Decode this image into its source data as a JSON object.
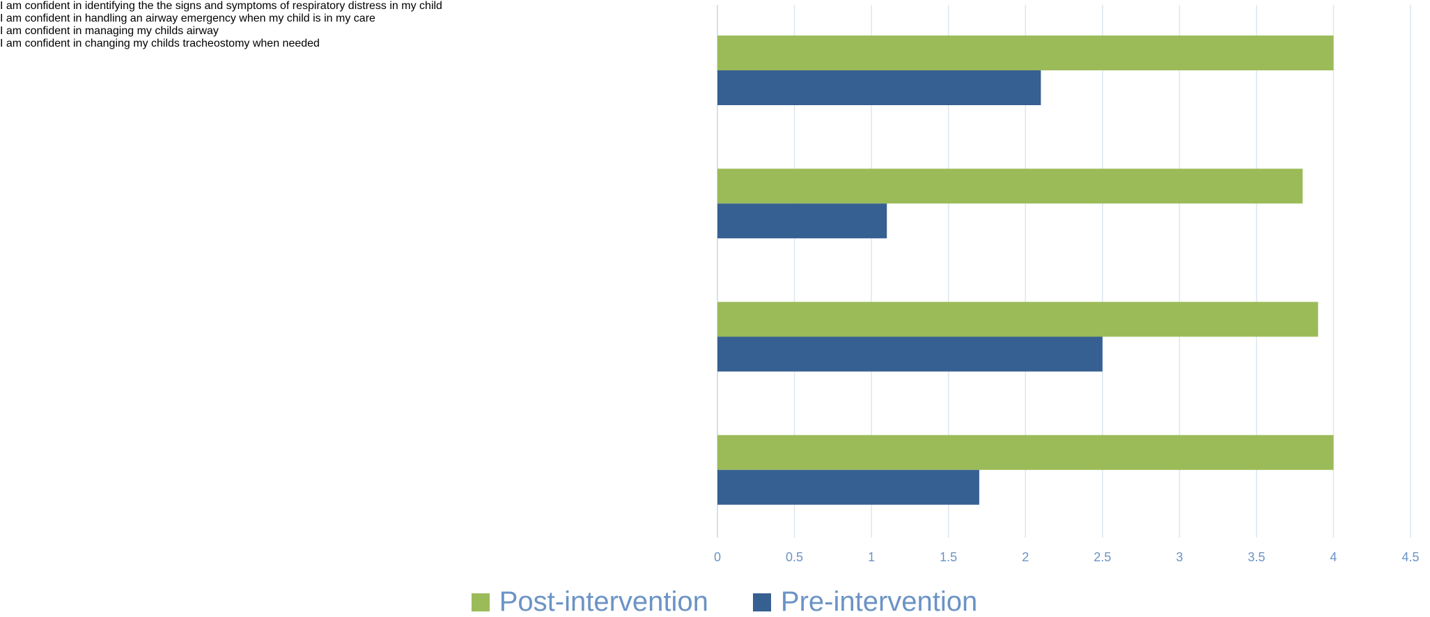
{
  "chart_data": {
    "type": "bar",
    "orientation": "horizontal",
    "categories": [
      "I am confident in identifying the the signs and symptoms of respiratory distress in my child",
      "I am confident in handling an airway emergency when my child is in my care",
      "I am confident in managing my childs airway",
      "I am confident in changing my childs tracheostomy when needed"
    ],
    "series": [
      {
        "name": "Post-intervention",
        "color": "#9bbb59",
        "values": [
          4,
          3.8,
          3.9,
          4
        ]
      },
      {
        "name": "Pre-intervention",
        "color": "#376092",
        "values": [
          2.1,
          1.1,
          2.5,
          1.7
        ]
      }
    ],
    "xlim": [
      0,
      4.5
    ],
    "xticks": [
      0,
      0.5,
      1,
      1.5,
      2,
      2.5,
      3,
      3.5,
      4,
      4.5
    ],
    "grid": true,
    "legend": "bottom"
  }
}
